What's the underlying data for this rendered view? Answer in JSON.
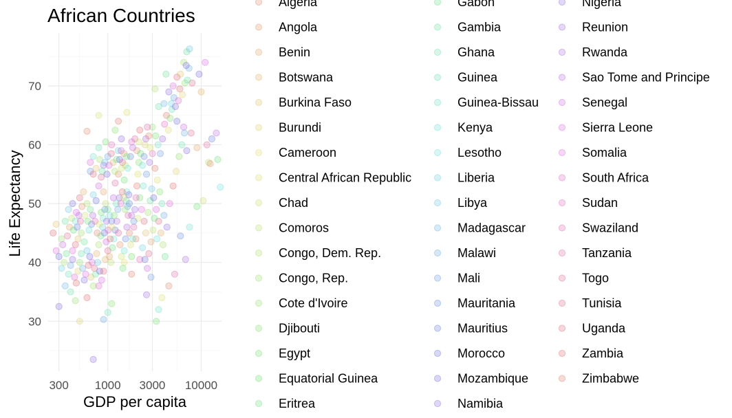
{
  "chart_data": {
    "type": "scatter",
    "title": "African Countries",
    "xlabel": "GDP per capita",
    "ylabel": "Life Expectancy",
    "x_scale": "log10",
    "xlim": [
      230,
      16500
    ],
    "ylim": [
      21.5,
      79
    ],
    "x_ticks": [
      300,
      1000,
      3000,
      10000
    ],
    "x_tick_labels": [
      "300",
      "1000",
      "3000",
      "10000"
    ],
    "y_ticks": [
      30,
      40,
      50,
      60,
      70
    ],
    "y_tick_labels": [
      "30",
      "40",
      "50",
      "60",
      "70"
    ],
    "grid": true,
    "legend_placement": "right",
    "point_alpha": 0.25,
    "series": [
      {
        "name": "Algeria"
      },
      {
        "name": "Angola"
      },
      {
        "name": "Benin"
      },
      {
        "name": "Botswana"
      },
      {
        "name": "Burkina Faso"
      },
      {
        "name": "Burundi"
      },
      {
        "name": "Cameroon"
      },
      {
        "name": "Central African Republic"
      },
      {
        "name": "Chad"
      },
      {
        "name": "Comoros"
      },
      {
        "name": "Congo, Dem. Rep."
      },
      {
        "name": "Congo, Rep."
      },
      {
        "name": "Cote d'Ivoire"
      },
      {
        "name": "Djibouti"
      },
      {
        "name": "Egypt"
      },
      {
        "name": "Equatorial Guinea"
      },
      {
        "name": "Eritrea"
      },
      {
        "name": "Gabon"
      },
      {
        "name": "Gambia"
      },
      {
        "name": "Ghana"
      },
      {
        "name": "Guinea"
      },
      {
        "name": "Guinea-Bissau"
      },
      {
        "name": "Kenya"
      },
      {
        "name": "Lesotho"
      },
      {
        "name": "Liberia"
      },
      {
        "name": "Libya"
      },
      {
        "name": "Madagascar"
      },
      {
        "name": "Malawi"
      },
      {
        "name": "Mali"
      },
      {
        "name": "Mauritania"
      },
      {
        "name": "Mauritius"
      },
      {
        "name": "Morocco"
      },
      {
        "name": "Mozambique"
      },
      {
        "name": "Namibia"
      },
      {
        "name": "Nigeria"
      },
      {
        "name": "Reunion"
      },
      {
        "name": "Rwanda"
      },
      {
        "name": "Sao Tome and Principe"
      },
      {
        "name": "Senegal"
      },
      {
        "name": "Sierra Leone"
      },
      {
        "name": "Somalia"
      },
      {
        "name": "South Africa"
      },
      {
        "name": "Sudan"
      },
      {
        "name": "Swaziland"
      },
      {
        "name": "Tanzania"
      },
      {
        "name": "Togo"
      },
      {
        "name": "Tunisia"
      },
      {
        "name": "Uganda"
      },
      {
        "name": "Zambia"
      },
      {
        "name": "Zimbabwe"
      }
    ],
    "points": [
      {
        "x": 600,
        "y": 62.3
      },
      {
        "x": 800,
        "y": 65
      },
      {
        "x": 950,
        "y": 60.5
      },
      {
        "x": 700,
        "y": 58
      },
      {
        "x": 650,
        "y": 55.5
      },
      {
        "x": 900,
        "y": 56.5
      },
      {
        "x": 1100,
        "y": 60
      },
      {
        "x": 1300,
        "y": 64
      },
      {
        "x": 1600,
        "y": 65.5
      },
      {
        "x": 1200,
        "y": 62.5
      },
      {
        "x": 800,
        "y": 59.5
      },
      {
        "x": 1000,
        "y": 58
      },
      {
        "x": 1400,
        "y": 61
      },
      {
        "x": 1800,
        "y": 60.5
      },
      {
        "x": 2200,
        "y": 62.5
      },
      {
        "x": 2500,
        "y": 60
      },
      {
        "x": 3000,
        "y": 63
      },
      {
        "x": 3500,
        "y": 66.5
      },
      {
        "x": 4000,
        "y": 67
      },
      {
        "x": 4500,
        "y": 69
      },
      {
        "x": 5000,
        "y": 70
      },
      {
        "x": 5500,
        "y": 71.5
      },
      {
        "x": 6000,
        "y": 72
      },
      {
        "x": 6500,
        "y": 74
      },
      {
        "x": 7000,
        "y": 75.8
      },
      {
        "x": 7500,
        "y": 76.3
      },
      {
        "x": 9500,
        "y": 72
      },
      {
        "x": 11000,
        "y": 74
      },
      {
        "x": 8000,
        "y": 70.5
      },
      {
        "x": 10000,
        "y": 69
      },
      {
        "x": 3200,
        "y": 69.5
      },
      {
        "x": 4200,
        "y": 72
      },
      {
        "x": 4800,
        "y": 67
      },
      {
        "x": 5500,
        "y": 64
      },
      {
        "x": 6500,
        "y": 63
      },
      {
        "x": 7800,
        "y": 62
      },
      {
        "x": 9000,
        "y": 59.5
      },
      {
        "x": 12000,
        "y": 57
      },
      {
        "x": 15000,
        "y": 57.5
      },
      {
        "x": 16000,
        "y": 52.8
      },
      {
        "x": 13000,
        "y": 61
      },
      {
        "x": 14500,
        "y": 62
      },
      {
        "x": 11500,
        "y": 60
      },
      {
        "x": 12500,
        "y": 56.8
      },
      {
        "x": 10500,
        "y": 50.5
      },
      {
        "x": 9000,
        "y": 49.5
      },
      {
        "x": 7500,
        "y": 46
      },
      {
        "x": 6000,
        "y": 44.5
      },
      {
        "x": 6800,
        "y": 40.5
      },
      {
        "x": 5200,
        "y": 38
      },
      {
        "x": 4500,
        "y": 36
      },
      {
        "x": 3800,
        "y": 34
      },
      {
        "x": 3300,
        "y": 30
      },
      {
        "x": 3500,
        "y": 32
      },
      {
        "x": 2900,
        "y": 37.5
      },
      {
        "x": 2600,
        "y": 34.5
      },
      {
        "x": 2200,
        "y": 40.5
      },
      {
        "x": 1800,
        "y": 38
      },
      {
        "x": 1500,
        "y": 40
      },
      {
        "x": 1100,
        "y": 33
      },
      {
        "x": 1000,
        "y": 31.5
      },
      {
        "x": 900,
        "y": 30.3
      },
      {
        "x": 700,
        "y": 23.5
      },
      {
        "x": 800,
        "y": 36
      },
      {
        "x": 600,
        "y": 34
      },
      {
        "x": 500,
        "y": 30
      },
      {
        "x": 450,
        "y": 33.5
      },
      {
        "x": 400,
        "y": 35
      },
      {
        "x": 350,
        "y": 36
      },
      {
        "x": 300,
        "y": 32.5
      },
      {
        "x": 280,
        "y": 42
      },
      {
        "x": 260,
        "y": 45
      },
      {
        "x": 280,
        "y": 46.5
      },
      {
        "x": 320,
        "y": 44
      },
      {
        "x": 350,
        "y": 47
      },
      {
        "x": 380,
        "y": 49
      },
      {
        "x": 420,
        "y": 50
      },
      {
        "x": 460,
        "y": 48.5
      },
      {
        "x": 500,
        "y": 51
      },
      {
        "x": 550,
        "y": 52
      },
      {
        "x": 600,
        "y": 50
      },
      {
        "x": 650,
        "y": 49
      },
      {
        "x": 700,
        "y": 51.5
      },
      {
        "x": 750,
        "y": 50.5
      },
      {
        "x": 800,
        "y": 53
      },
      {
        "x": 850,
        "y": 54.5
      },
      {
        "x": 900,
        "y": 52
      },
      {
        "x": 950,
        "y": 50
      },
      {
        "x": 1000,
        "y": 49
      },
      {
        "x": 1050,
        "y": 48
      },
      {
        "x": 1100,
        "y": 47
      },
      {
        "x": 1150,
        "y": 51
      },
      {
        "x": 1200,
        "y": 53.5
      },
      {
        "x": 1300,
        "y": 55
      },
      {
        "x": 1400,
        "y": 56
      },
      {
        "x": 1500,
        "y": 54
      },
      {
        "x": 1600,
        "y": 52
      },
      {
        "x": 1700,
        "y": 50
      },
      {
        "x": 1800,
        "y": 48
      },
      {
        "x": 1900,
        "y": 46
      },
      {
        "x": 2000,
        "y": 44
      },
      {
        "x": 2100,
        "y": 47.5
      },
      {
        "x": 2200,
        "y": 51
      },
      {
        "x": 2400,
        "y": 53
      },
      {
        "x": 2600,
        "y": 55
      },
      {
        "x": 2800,
        "y": 57
      },
      {
        "x": 3000,
        "y": 58.5
      },
      {
        "x": 3200,
        "y": 56
      },
      {
        "x": 3400,
        "y": 54
      },
      {
        "x": 3600,
        "y": 52
      },
      {
        "x": 3800,
        "y": 50
      },
      {
        "x": 4000,
        "y": 48
      },
      {
        "x": 4300,
        "y": 46
      },
      {
        "x": 4600,
        "y": 50
      },
      {
        "x": 5000,
        "y": 53
      },
      {
        "x": 5400,
        "y": 55.5
      },
      {
        "x": 5800,
        "y": 58
      },
      {
        "x": 6200,
        "y": 60
      },
      {
        "x": 6600,
        "y": 62
      },
      {
        "x": 7000,
        "y": 59
      },
      {
        "x": 420,
        "y": 42
      },
      {
        "x": 450,
        "y": 43
      },
      {
        "x": 480,
        "y": 44
      },
      {
        "x": 520,
        "y": 45
      },
      {
        "x": 560,
        "y": 43.5
      },
      {
        "x": 600,
        "y": 42
      },
      {
        "x": 640,
        "y": 41
      },
      {
        "x": 680,
        "y": 40
      },
      {
        "x": 720,
        "y": 39
      },
      {
        "x": 760,
        "y": 41.5
      },
      {
        "x": 800,
        "y": 43
      },
      {
        "x": 840,
        "y": 44.5
      },
      {
        "x": 880,
        "y": 46
      },
      {
        "x": 920,
        "y": 45
      },
      {
        "x": 960,
        "y": 43.5
      },
      {
        "x": 1000,
        "y": 42
      },
      {
        "x": 1040,
        "y": 41
      },
      {
        "x": 1080,
        "y": 40
      },
      {
        "x": 1120,
        "y": 42.5
      },
      {
        "x": 1160,
        "y": 44
      },
      {
        "x": 1200,
        "y": 45.5
      },
      {
        "x": 1250,
        "y": 47
      },
      {
        "x": 1300,
        "y": 45
      },
      {
        "x": 1350,
        "y": 43
      },
      {
        "x": 1400,
        "y": 41
      },
      {
        "x": 1450,
        "y": 39
      },
      {
        "x": 1500,
        "y": 42
      },
      {
        "x": 1550,
        "y": 44
      },
      {
        "x": 1600,
        "y": 46
      },
      {
        "x": 1650,
        "y": 48
      },
      {
        "x": 1700,
        "y": 45
      },
      {
        "x": 1750,
        "y": 43
      },
      {
        "x": 1800,
        "y": 41
      },
      {
        "x": 1850,
        "y": 44
      },
      {
        "x": 1900,
        "y": 47
      },
      {
        "x": 1950,
        "y": 49
      },
      {
        "x": 2000,
        "y": 51
      },
      {
        "x": 2050,
        "y": 53
      },
      {
        "x": 2100,
        "y": 55
      },
      {
        "x": 2150,
        "y": 57
      },
      {
        "x": 380,
        "y": 38
      },
      {
        "x": 400,
        "y": 39.5
      },
      {
        "x": 420,
        "y": 40.5
      },
      {
        "x": 440,
        "y": 37.5
      },
      {
        "x": 460,
        "y": 36.5
      },
      {
        "x": 480,
        "y": 38.5
      },
      {
        "x": 500,
        "y": 40
      },
      {
        "x": 520,
        "y": 41.5
      },
      {
        "x": 540,
        "y": 39
      },
      {
        "x": 560,
        "y": 37
      },
      {
        "x": 580,
        "y": 38
      },
      {
        "x": 620,
        "y": 39.5
      },
      {
        "x": 660,
        "y": 37.5
      },
      {
        "x": 700,
        "y": 36
      },
      {
        "x": 740,
        "y": 38
      },
      {
        "x": 780,
        "y": 40
      },
      {
        "x": 820,
        "y": 38.5
      },
      {
        "x": 860,
        "y": 37
      },
      {
        "x": 900,
        "y": 38.5
      },
      {
        "x": 940,
        "y": 40.5
      },
      {
        "x": 340,
        "y": 40
      },
      {
        "x": 360,
        "y": 41.5
      },
      {
        "x": 320,
        "y": 39
      },
      {
        "x": 300,
        "y": 41
      },
      {
        "x": 330,
        "y": 43
      },
      {
        "x": 370,
        "y": 44.5
      },
      {
        "x": 390,
        "y": 46
      },
      {
        "x": 410,
        "y": 47.5
      },
      {
        "x": 430,
        "y": 45.5
      },
      {
        "x": 450,
        "y": 47
      },
      {
        "x": 470,
        "y": 46
      },
      {
        "x": 490,
        "y": 48
      },
      {
        "x": 510,
        "y": 47
      },
      {
        "x": 530,
        "y": 49.5
      },
      {
        "x": 570,
        "y": 48
      },
      {
        "x": 610,
        "y": 47
      },
      {
        "x": 630,
        "y": 45.5
      },
      {
        "x": 670,
        "y": 46.5
      },
      {
        "x": 690,
        "y": 48
      },
      {
        "x": 730,
        "y": 47
      },
      {
        "x": 770,
        "y": 45
      },
      {
        "x": 810,
        "y": 46.5
      },
      {
        "x": 850,
        "y": 48.5
      },
      {
        "x": 890,
        "y": 47.5
      },
      {
        "x": 930,
        "y": 49
      },
      {
        "x": 970,
        "y": 47
      },
      {
        "x": 1010,
        "y": 45.5
      },
      {
        "x": 1060,
        "y": 44
      },
      {
        "x": 1110,
        "y": 46
      },
      {
        "x": 1170,
        "y": 48
      },
      {
        "x": 1230,
        "y": 50
      },
      {
        "x": 1280,
        "y": 49
      },
      {
        "x": 1330,
        "y": 51
      },
      {
        "x": 1380,
        "y": 50
      },
      {
        "x": 1430,
        "y": 52
      },
      {
        "x": 1480,
        "y": 51
      },
      {
        "x": 1530,
        "y": 49
      },
      {
        "x": 1580,
        "y": 50.5
      },
      {
        "x": 1630,
        "y": 49.5
      },
      {
        "x": 1680,
        "y": 51.5
      },
      {
        "x": 2300,
        "y": 49
      },
      {
        "x": 2450,
        "y": 47
      },
      {
        "x": 2550,
        "y": 45
      },
      {
        "x": 2700,
        "y": 48.5
      },
      {
        "x": 2850,
        "y": 50.5
      },
      {
        "x": 2950,
        "y": 52.5
      },
      {
        "x": 3100,
        "y": 51
      },
      {
        "x": 3300,
        "y": 49
      },
      {
        "x": 3500,
        "y": 47
      },
      {
        "x": 3700,
        "y": 45
      },
      {
        "x": 3900,
        "y": 43
      },
      {
        "x": 4100,
        "y": 41
      },
      {
        "x": 2350,
        "y": 42.5
      },
      {
        "x": 2500,
        "y": 40.5
      },
      {
        "x": 2650,
        "y": 39
      },
      {
        "x": 2750,
        "y": 41.5
      },
      {
        "x": 2900,
        "y": 43.5
      },
      {
        "x": 3050,
        "y": 45.5
      },
      {
        "x": 3150,
        "y": 47.5
      },
      {
        "x": 3350,
        "y": 44
      },
      {
        "x": 1750,
        "y": 58
      },
      {
        "x": 1850,
        "y": 59.5
      },
      {
        "x": 1950,
        "y": 61
      },
      {
        "x": 2050,
        "y": 59
      },
      {
        "x": 2150,
        "y": 60.5
      },
      {
        "x": 2250,
        "y": 58.5
      },
      {
        "x": 2350,
        "y": 56.5
      },
      {
        "x": 2450,
        "y": 58
      },
      {
        "x": 2550,
        "y": 61
      },
      {
        "x": 2650,
        "y": 63
      },
      {
        "x": 2750,
        "y": 61.5
      },
      {
        "x": 2850,
        "y": 59.5
      },
      {
        "x": 3250,
        "y": 61.5
      },
      {
        "x": 3450,
        "y": 60
      },
      {
        "x": 3650,
        "y": 58.5
      },
      {
        "x": 3850,
        "y": 61
      },
      {
        "x": 4050,
        "y": 63.5
      },
      {
        "x": 4250,
        "y": 65
      },
      {
        "x": 4450,
        "y": 62.5
      },
      {
        "x": 4650,
        "y": 64.5
      },
      {
        "x": 4850,
        "y": 66
      },
      {
        "x": 5100,
        "y": 68
      },
      {
        "x": 5300,
        "y": 66.5
      },
      {
        "x": 5700,
        "y": 67.5
      },
      {
        "x": 5900,
        "y": 69.5
      },
      {
        "x": 6300,
        "y": 68.5
      },
      {
        "x": 6700,
        "y": 70.5
      },
      {
        "x": 7100,
        "y": 71
      },
      {
        "x": 7400,
        "y": 73
      },
      {
        "x": 6900,
        "y": 73.5
      },
      {
        "x": 650,
        "y": 57
      },
      {
        "x": 700,
        "y": 55
      },
      {
        "x": 750,
        "y": 56
      },
      {
        "x": 820,
        "y": 57.5
      },
      {
        "x": 870,
        "y": 55.5
      },
      {
        "x": 930,
        "y": 57
      },
      {
        "x": 980,
        "y": 55
      },
      {
        "x": 1030,
        "y": 56.5
      },
      {
        "x": 1090,
        "y": 58.5
      },
      {
        "x": 1140,
        "y": 57
      },
      {
        "x": 1190,
        "y": 55.5
      },
      {
        "x": 1240,
        "y": 57.5
      },
      {
        "x": 1290,
        "y": 59
      },
      {
        "x": 1340,
        "y": 57.5
      },
      {
        "x": 1390,
        "y": 59
      },
      {
        "x": 1440,
        "y": 57
      },
      {
        "x": 1490,
        "y": 58.5
      },
      {
        "x": 1540,
        "y": 56.5
      },
      {
        "x": 1590,
        "y": 58
      },
      {
        "x": 1640,
        "y": 56
      }
    ]
  },
  "colors": {
    "background": "#ffffff",
    "grid_major": "#ebebeb",
    "tick_label": "#4d4d4d"
  }
}
